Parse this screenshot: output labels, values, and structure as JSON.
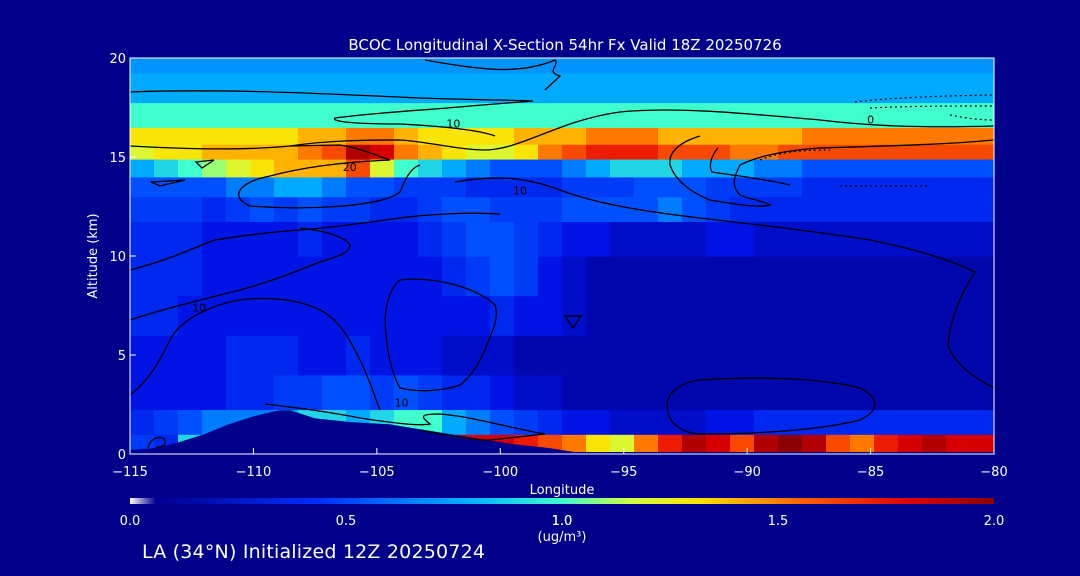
{
  "chart_data": {
    "type": "heatmap",
    "title": "BCOC Longitudinal X-Section 54hr  Fx Valid 18Z 20250726",
    "xlabel": "Longitude",
    "ylabel": "Altitude (km)",
    "xlim": [
      -115,
      -80
    ],
    "ylim": [
      0,
      20
    ],
    "x_ticks": [
      -115,
      -110,
      -105,
      -100,
      -95,
      -90,
      -85,
      -80
    ],
    "x_tick_labels": [
      "−115",
      "−110",
      "−105",
      "−100",
      "−95",
      "−90",
      "−85",
      "−80"
    ],
    "y_ticks": [
      0,
      5,
      10,
      15,
      20
    ],
    "y_tick_labels": [
      "0",
      "5",
      "10",
      "15",
      "20"
    ],
    "contour_labels": [
      {
        "text": "10",
        "lon": -101.9,
        "alt": 16.5
      },
      {
        "text": "20",
        "lon": -106.1,
        "alt": 14.3
      },
      {
        "text": "0",
        "lon": -85.0,
        "alt": 16.7
      },
      {
        "text": "10",
        "lon": -112.2,
        "alt": 7.2
      },
      {
        "text": "10",
        "lon": -99.2,
        "alt": 13.1
      },
      {
        "text": "10",
        "lon": -104.0,
        "alt": 2.4
      }
    ],
    "colorbar": {
      "min": 0.0,
      "max": 2.0,
      "ticks": [
        0.0,
        0.5,
        1.0,
        1.5,
        2.0
      ],
      "tick_labels": [
        "0.0",
        "0.5",
        "1.0",
        "1.5",
        "2.0"
      ],
      "label_line1": "1.0",
      "label_line2": "(ug/m³)"
    },
    "terrain": {
      "lon": [
        -115,
        -114,
        -113,
        -112,
        -111,
        -110,
        -109,
        -108.5,
        -107.5,
        -106,
        -104.5,
        -103,
        -101,
        -99.5,
        -98,
        -97,
        -95,
        -92,
        -90,
        -85,
        -80
      ],
      "alt": [
        0.2,
        0.3,
        0.6,
        1.0,
        1.5,
        1.9,
        2.2,
        2.2,
        1.8,
        1.6,
        1.5,
        1.2,
        0.8,
        0.5,
        0.3,
        0.1,
        0.1,
        0.1,
        0.1,
        0.1,
        0.1
      ]
    },
    "field_rows": [
      {
        "alt": 0.5,
        "values": [
          0.5,
          0.4,
          0.9,
          1.1,
          1.1,
          1.1,
          1.1,
          1.2,
          1.4,
          1.6,
          1.7,
          1.8,
          1.9,
          1.9,
          1.8,
          1.8,
          1.7,
          1.6,
          1.5,
          1.3,
          1.2,
          1.5,
          1.7,
          1.9,
          1.8,
          1.6,
          1.9,
          2.0,
          1.9,
          1.6,
          1.5,
          1.7,
          1.8,
          1.9,
          1.8,
          1.8
        ]
      },
      {
        "alt": 1.5,
        "values": [
          0.4,
          0.5,
          0.6,
          0.7,
          0.7,
          0.7,
          0.8,
          0.9,
          0.9,
          0.8,
          0.9,
          1.0,
          1.0,
          0.8,
          0.7,
          0.6,
          0.5,
          0.4,
          0.3,
          0.3,
          0.2,
          0.2,
          0.2,
          0.2,
          0.3,
          0.3,
          0.4,
          0.4,
          0.4,
          0.4,
          0.4,
          0.4,
          0.4,
          0.4,
          0.4,
          0.4
        ]
      },
      {
        "alt": 3.0,
        "values": [
          0.3,
          0.3,
          0.3,
          0.3,
          0.4,
          0.4,
          0.5,
          0.5,
          0.6,
          0.6,
          0.5,
          0.6,
          0.5,
          0.4,
          0.4,
          0.3,
          0.2,
          0.2,
          0.1,
          0.1,
          0.1,
          0.1,
          0.1,
          0.1,
          0.1,
          0.1,
          0.1,
          0.1,
          0.1,
          0.1,
          0.1,
          0.1,
          0.1,
          0.1,
          0.1,
          0.1
        ]
      },
      {
        "alt": 5.0,
        "values": [
          0.3,
          0.3,
          0.3,
          0.3,
          0.4,
          0.4,
          0.4,
          0.3,
          0.3,
          0.4,
          0.3,
          0.3,
          0.3,
          0.2,
          0.2,
          0.2,
          0.1,
          0.1,
          0.1,
          0.1,
          0.1,
          0.1,
          0.1,
          0.1,
          0.1,
          0.1,
          0.1,
          0.1,
          0.1,
          0.1,
          0.1,
          0.1,
          0.1,
          0.1,
          0.1,
          0.1
        ]
      },
      {
        "alt": 7.0,
        "values": [
          0.4,
          0.4,
          0.3,
          0.3,
          0.3,
          0.3,
          0.3,
          0.3,
          0.3,
          0.3,
          0.3,
          0.3,
          0.3,
          0.3,
          0.3,
          0.4,
          0.3,
          0.3,
          0.2,
          0.1,
          0.1,
          0.1,
          0.1,
          0.1,
          0.1,
          0.1,
          0.1,
          0.1,
          0.1,
          0.1,
          0.1,
          0.1,
          0.1,
          0.1,
          0.1,
          0.1
        ]
      },
      {
        "alt": 9.0,
        "values": [
          0.4,
          0.4,
          0.4,
          0.3,
          0.3,
          0.3,
          0.3,
          0.3,
          0.3,
          0.3,
          0.3,
          0.3,
          0.3,
          0.4,
          0.5,
          0.6,
          0.5,
          0.3,
          0.2,
          0.1,
          0.1,
          0.1,
          0.1,
          0.1,
          0.1,
          0.1,
          0.1,
          0.1,
          0.1,
          0.1,
          0.1,
          0.1,
          0.1,
          0.1,
          0.1,
          0.1
        ]
      },
      {
        "alt": 11.0,
        "values": [
          0.4,
          0.4,
          0.4,
          0.3,
          0.3,
          0.3,
          0.3,
          0.4,
          0.3,
          0.3,
          0.3,
          0.3,
          0.4,
          0.5,
          0.6,
          0.6,
          0.5,
          0.4,
          0.3,
          0.3,
          0.2,
          0.2,
          0.2,
          0.2,
          0.3,
          0.3,
          0.2,
          0.2,
          0.2,
          0.2,
          0.2,
          0.2,
          0.2,
          0.2,
          0.2,
          0.2
        ]
      },
      {
        "alt": 12.5,
        "values": [
          0.5,
          0.5,
          0.5,
          0.4,
          0.5,
          0.6,
          0.5,
          0.6,
          0.5,
          0.5,
          0.4,
          0.4,
          0.5,
          0.6,
          0.6,
          0.5,
          0.5,
          0.5,
          0.6,
          0.6,
          0.6,
          0.6,
          0.7,
          0.6,
          0.5,
          0.4,
          0.4,
          0.4,
          0.4,
          0.4,
          0.4,
          0.4,
          0.4,
          0.4,
          0.4,
          0.4
        ]
      },
      {
        "alt": 13.5,
        "values": [
          0.6,
          0.6,
          0.6,
          0.6,
          0.7,
          0.7,
          0.8,
          0.8,
          0.7,
          0.6,
          0.6,
          0.5,
          0.5,
          0.5,
          0.4,
          0.4,
          0.4,
          0.4,
          0.5,
          0.5,
          0.5,
          0.6,
          0.6,
          0.6,
          0.5,
          0.5,
          0.5,
          0.5,
          0.4,
          0.4,
          0.4,
          0.4,
          0.4,
          0.4,
          0.4,
          0.4
        ]
      },
      {
        "alt": 14.5,
        "values": [
          0.8,
          0.9,
          1.0,
          1.1,
          1.2,
          1.3,
          1.4,
          1.4,
          1.4,
          1.6,
          1.2,
          1.0,
          0.9,
          0.8,
          0.7,
          0.6,
          0.6,
          0.6,
          0.7,
          0.8,
          0.9,
          0.9,
          0.9,
          0.8,
          0.8,
          0.8,
          0.7,
          0.7,
          0.6,
          0.6,
          0.6,
          0.6,
          0.6,
          0.6,
          0.6,
          0.6
        ]
      },
      {
        "alt": 15.3,
        "values": [
          1.2,
          1.3,
          1.3,
          1.4,
          1.4,
          1.4,
          1.4,
          1.5,
          1.6,
          1.9,
          1.8,
          1.5,
          1.4,
          1.3,
          1.2,
          1.2,
          1.3,
          1.5,
          1.6,
          1.7,
          1.7,
          1.7,
          1.6,
          1.6,
          1.6,
          1.5,
          1.5,
          1.6,
          1.6,
          1.6,
          1.6,
          1.6,
          1.6,
          1.6,
          1.6,
          1.6
        ]
      },
      {
        "alt": 16.0,
        "values": [
          1.3,
          1.3,
          1.3,
          1.3,
          1.3,
          1.3,
          1.3,
          1.4,
          1.4,
          1.5,
          1.5,
          1.4,
          1.3,
          1.3,
          1.3,
          1.3,
          1.4,
          1.4,
          1.4,
          1.5,
          1.5,
          1.5,
          1.4,
          1.4,
          1.4,
          1.4,
          1.4,
          1.4,
          1.5,
          1.5,
          1.5,
          1.5,
          1.5,
          1.5,
          1.5,
          1.5
        ]
      },
      {
        "alt": 17.0,
        "values": [
          1.0,
          1.0,
          1.0,
          1.0,
          1.0,
          1.0,
          1.0,
          1.0,
          1.0,
          1.0,
          1.0,
          1.0,
          1.0,
          1.0,
          1.0,
          1.0,
          1.0,
          1.0,
          1.0,
          1.0,
          1.0,
          1.0,
          1.0,
          1.0,
          1.0,
          1.0,
          1.0,
          1.0,
          1.0,
          1.0,
          1.0,
          1.0,
          1.0,
          1.0,
          1.0,
          1.0
        ]
      },
      {
        "alt": 18.5,
        "values": [
          0.8,
          0.8,
          0.8,
          0.8,
          0.8,
          0.8,
          0.8,
          0.8,
          0.8,
          0.8,
          0.8,
          0.8,
          0.8,
          0.8,
          0.8,
          0.8,
          0.8,
          0.8,
          0.8,
          0.8,
          0.8,
          0.8,
          0.8,
          0.8,
          0.8,
          0.8,
          0.8,
          0.8,
          0.8,
          0.8,
          0.8,
          0.8,
          0.8,
          0.8,
          0.8,
          0.8
        ]
      },
      {
        "alt": 20.0,
        "values": [
          0.75,
          0.75,
          0.75,
          0.75,
          0.75,
          0.75,
          0.75,
          0.75,
          0.75,
          0.75,
          0.75,
          0.75,
          0.75,
          0.75,
          0.75,
          0.75,
          0.75,
          0.75,
          0.75,
          0.75,
          0.75,
          0.75,
          0.75,
          0.75,
          0.75,
          0.75,
          0.75,
          0.75,
          0.75,
          0.75,
          0.75,
          0.75,
          0.75,
          0.75,
          0.75,
          0.75
        ]
      }
    ]
  },
  "footer": {
    "text": "LA (34°N) Initialized 12Z 20250724"
  },
  "colors": {
    "background": "#00008b",
    "contour": "#000000",
    "text": "#ffffff"
  }
}
